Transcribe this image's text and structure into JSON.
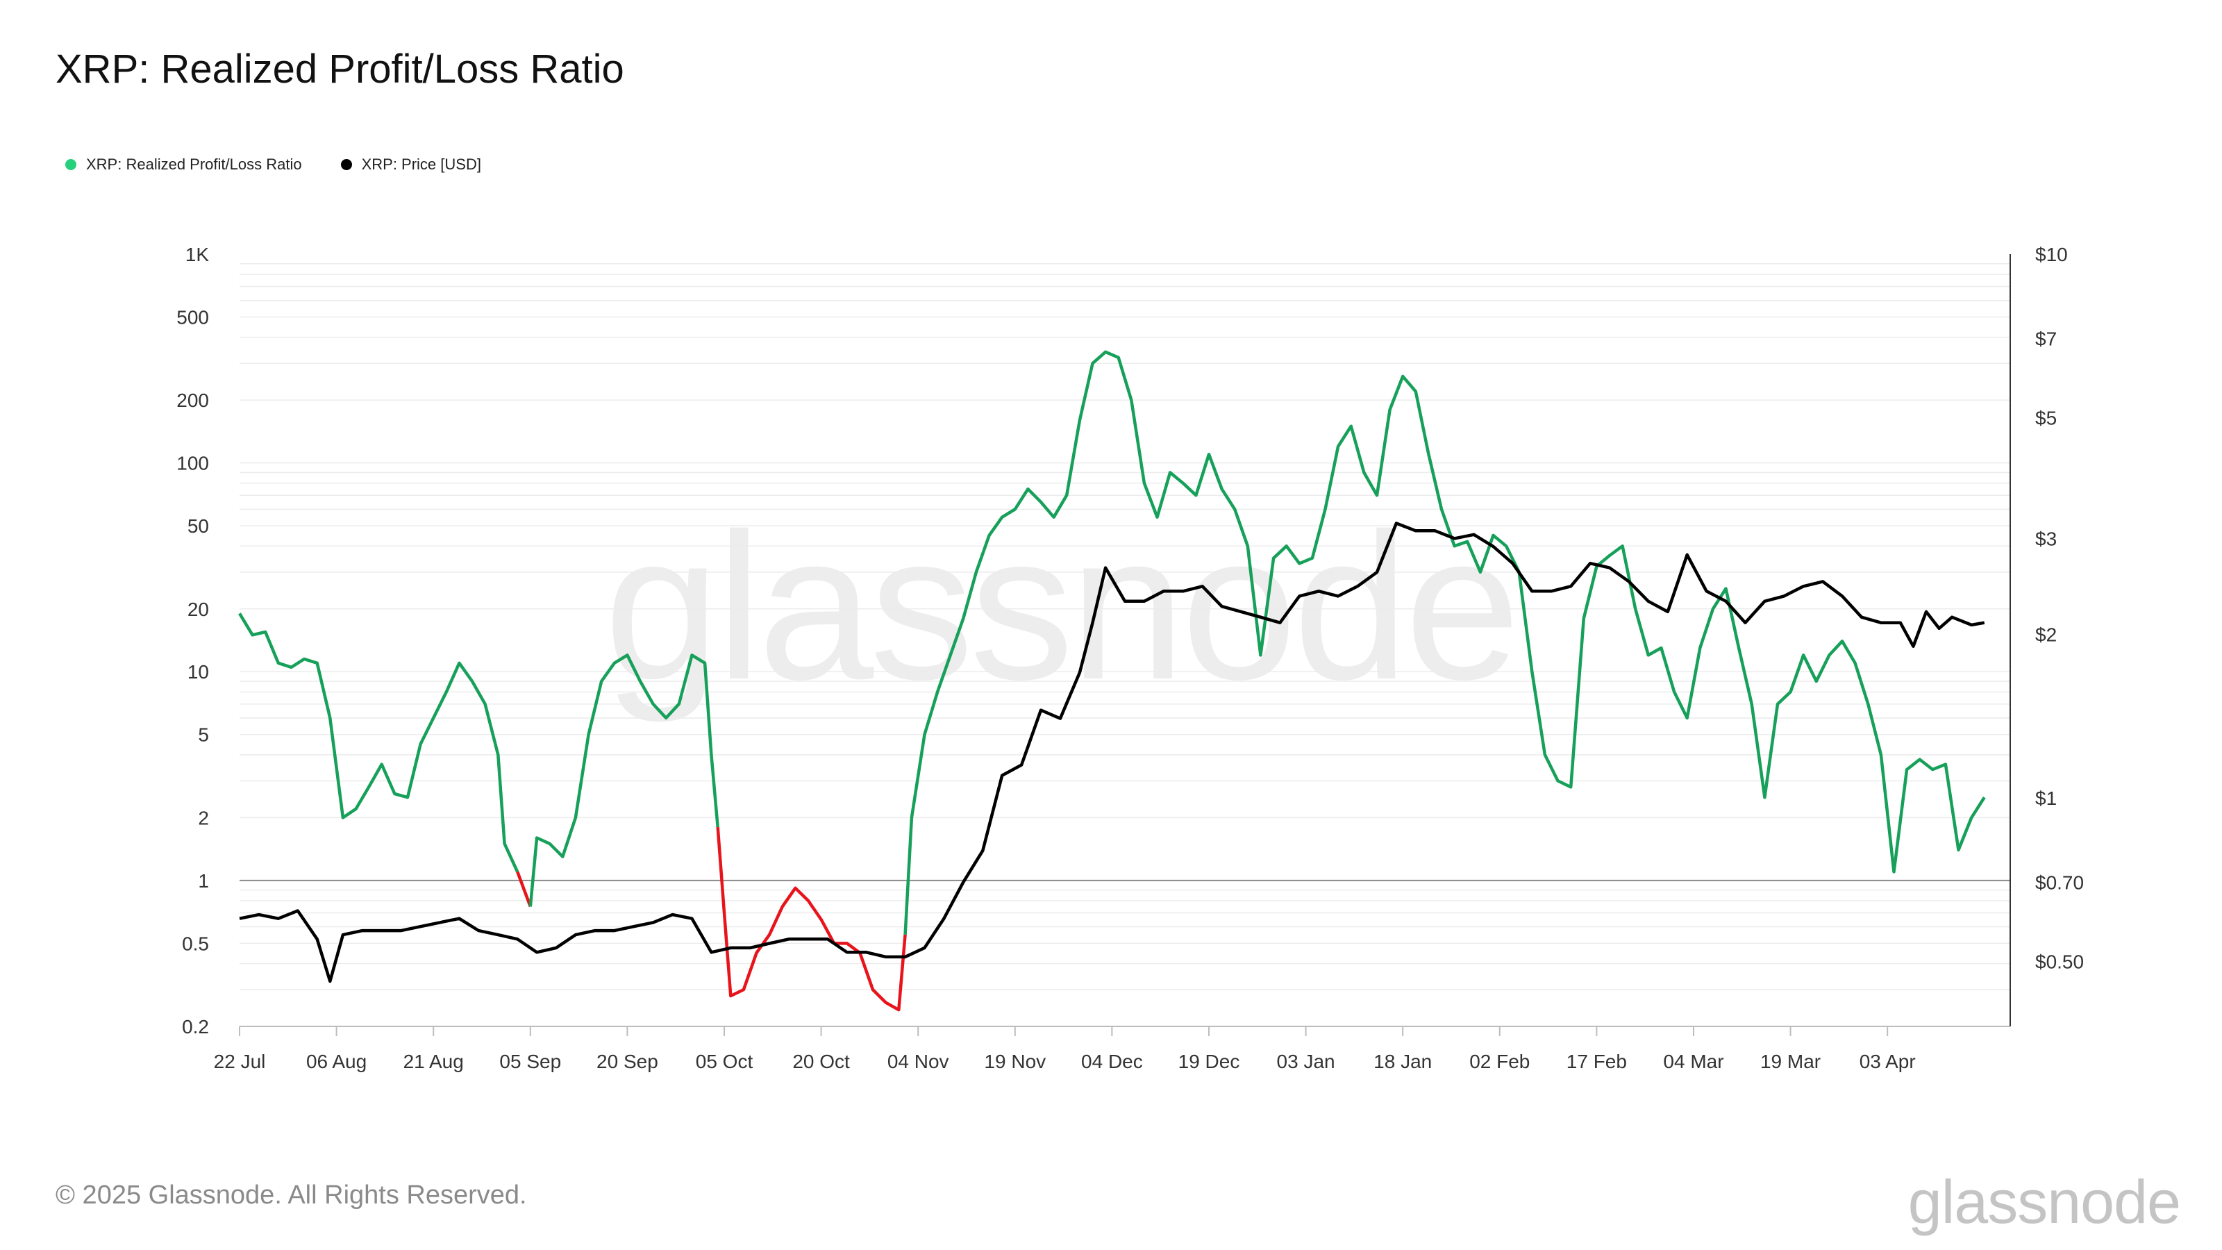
{
  "title": "XRP: Realized Profit/Loss Ratio",
  "footer": {
    "copyright": "© 2025 Glassnode. All Rights Reserved.",
    "brand": "glassnode"
  },
  "watermark": "glassnode",
  "colors": {
    "profit": "#16a05a",
    "loss": "#e8141b",
    "price": "#000000",
    "legend_ratio": "#26d07c"
  },
  "chart_data": {
    "type": "line",
    "title": "XRP: Realized Profit/Loss Ratio",
    "x_scale": "time",
    "x_ticks": [
      "22 Jul",
      "06 Aug",
      "21 Aug",
      "05 Sep",
      "20 Sep",
      "05 Oct",
      "20 Oct",
      "04 Nov",
      "19 Nov",
      "04 Dec",
      "19 Dec",
      "03 Jan",
      "18 Jan",
      "02 Feb",
      "17 Feb",
      "04 Mar",
      "19 Mar",
      "03 Apr"
    ],
    "y_left": {
      "scale": "log",
      "range": [
        0.2,
        1000
      ],
      "ticks": [
        1000,
        500,
        200,
        100,
        50,
        20,
        10,
        5,
        2,
        1,
        0.5,
        0.2
      ],
      "tick_labels": [
        "1K",
        "500",
        "200",
        "100",
        "50",
        "20",
        "10",
        "5",
        "2",
        "1",
        "0.5",
        "0.2"
      ],
      "reference_line": 1
    },
    "y_right": {
      "scale": "log",
      "range": [
        0.38,
        10
      ],
      "ticks": [
        10,
        7,
        5,
        3,
        2,
        1,
        0.7,
        0.5
      ],
      "tick_labels": [
        "$10",
        "$7",
        "$5",
        "$3",
        "$2",
        "$1",
        "$0.70",
        "$0.50"
      ]
    },
    "series": [
      {
        "name": "XRP: Realized Profit/Loss Ratio",
        "axis": "left",
        "color_above_1": "#16a05a",
        "color_below_1": "#e8141b",
        "points": [
          [
            "2024-07-22",
            19
          ],
          [
            "2024-07-24",
            15
          ],
          [
            "2024-07-26",
            15.5
          ],
          [
            "2024-07-28",
            11
          ],
          [
            "2024-07-30",
            10.5
          ],
          [
            "2024-08-01",
            11.5
          ],
          [
            "2024-08-03",
            11
          ],
          [
            "2024-08-05",
            6
          ],
          [
            "2024-08-07",
            2
          ],
          [
            "2024-08-09",
            2.2
          ],
          [
            "2024-08-11",
            2.8
          ],
          [
            "2024-08-13",
            3.6
          ],
          [
            "2024-08-15",
            2.6
          ],
          [
            "2024-08-17",
            2.5
          ],
          [
            "2024-08-19",
            4.5
          ],
          [
            "2024-08-21",
            6
          ],
          [
            "2024-08-23",
            8
          ],
          [
            "2024-08-25",
            11
          ],
          [
            "2024-08-27",
            9
          ],
          [
            "2024-08-29",
            7
          ],
          [
            "2024-08-31",
            4
          ],
          [
            "2024-09-01",
            1.5
          ],
          [
            "2024-09-03",
            1.1
          ],
          [
            "2024-09-05",
            0.75
          ],
          [
            "2024-09-06",
            1.6
          ],
          [
            "2024-09-08",
            1.5
          ],
          [
            "2024-09-10",
            1.3
          ],
          [
            "2024-09-12",
            2
          ],
          [
            "2024-09-14",
            5
          ],
          [
            "2024-09-16",
            9
          ],
          [
            "2024-09-18",
            11
          ],
          [
            "2024-09-20",
            12
          ],
          [
            "2024-09-22",
            9
          ],
          [
            "2024-09-24",
            7
          ],
          [
            "2024-09-26",
            6
          ],
          [
            "2024-09-28",
            7
          ],
          [
            "2024-09-30",
            12
          ],
          [
            "2024-10-02",
            11
          ],
          [
            "2024-10-03",
            4
          ],
          [
            "2024-10-04",
            1.8
          ],
          [
            "2024-10-05",
            0.7
          ],
          [
            "2024-10-06",
            0.28
          ],
          [
            "2024-10-08",
            0.3
          ],
          [
            "2024-10-10",
            0.45
          ],
          [
            "2024-10-12",
            0.55
          ],
          [
            "2024-10-14",
            0.75
          ],
          [
            "2024-10-16",
            0.92
          ],
          [
            "2024-10-18",
            0.8
          ],
          [
            "2024-10-20",
            0.65
          ],
          [
            "2024-10-22",
            0.5
          ],
          [
            "2024-10-24",
            0.5
          ],
          [
            "2024-10-26",
            0.45
          ],
          [
            "2024-10-28",
            0.3
          ],
          [
            "2024-10-30",
            0.26
          ],
          [
            "2024-11-01",
            0.24
          ],
          [
            "2024-11-02",
            0.55
          ],
          [
            "2024-11-03",
            2
          ],
          [
            "2024-11-05",
            5
          ],
          [
            "2024-11-07",
            8
          ],
          [
            "2024-11-09",
            12
          ],
          [
            "2024-11-11",
            18
          ],
          [
            "2024-11-13",
            30
          ],
          [
            "2024-11-15",
            45
          ],
          [
            "2024-11-17",
            55
          ],
          [
            "2024-11-19",
            60
          ],
          [
            "2024-11-21",
            75
          ],
          [
            "2024-11-23",
            65
          ],
          [
            "2024-11-25",
            55
          ],
          [
            "2024-11-27",
            70
          ],
          [
            "2024-11-29",
            160
          ],
          [
            "2024-12-01",
            300
          ],
          [
            "2024-12-03",
            340
          ],
          [
            "2024-12-05",
            320
          ],
          [
            "2024-12-07",
            200
          ],
          [
            "2024-12-09",
            80
          ],
          [
            "2024-12-11",
            55
          ],
          [
            "2024-12-13",
            90
          ],
          [
            "2024-12-15",
            80
          ],
          [
            "2024-12-17",
            70
          ],
          [
            "2024-12-19",
            110
          ],
          [
            "2024-12-21",
            75
          ],
          [
            "2024-12-23",
            60
          ],
          [
            "2024-12-25",
            40
          ],
          [
            "2024-12-27",
            12
          ],
          [
            "2024-12-29",
            35
          ],
          [
            "2024-12-31",
            40
          ],
          [
            "2025-01-02",
            33
          ],
          [
            "2025-01-04",
            35
          ],
          [
            "2025-01-06",
            60
          ],
          [
            "2025-01-08",
            120
          ],
          [
            "2025-01-10",
            150
          ],
          [
            "2025-01-12",
            90
          ],
          [
            "2025-01-14",
            70
          ],
          [
            "2025-01-16",
            180
          ],
          [
            "2025-01-18",
            260
          ],
          [
            "2025-01-20",
            220
          ],
          [
            "2025-01-22",
            110
          ],
          [
            "2025-01-24",
            60
          ],
          [
            "2025-01-26",
            40
          ],
          [
            "2025-01-28",
            42
          ],
          [
            "2025-01-30",
            30
          ],
          [
            "2025-02-01",
            45
          ],
          [
            "2025-02-03",
            40
          ],
          [
            "2025-02-05",
            30
          ],
          [
            "2025-02-07",
            10
          ],
          [
            "2025-02-09",
            4
          ],
          [
            "2025-02-11",
            3
          ],
          [
            "2025-02-13",
            2.8
          ],
          [
            "2025-02-15",
            18
          ],
          [
            "2025-02-17",
            32
          ],
          [
            "2025-02-19",
            36
          ],
          [
            "2025-02-21",
            40
          ],
          [
            "2025-02-23",
            20
          ],
          [
            "2025-02-25",
            12
          ],
          [
            "2025-02-27",
            13
          ],
          [
            "2025-03-01",
            8
          ],
          [
            "2025-03-03",
            6
          ],
          [
            "2025-03-05",
            13
          ],
          [
            "2025-03-07",
            20
          ],
          [
            "2025-03-09",
            25
          ],
          [
            "2025-03-11",
            13
          ],
          [
            "2025-03-13",
            7
          ],
          [
            "2025-03-15",
            2.5
          ],
          [
            "2025-03-17",
            7
          ],
          [
            "2025-03-19",
            8
          ],
          [
            "2025-03-21",
            12
          ],
          [
            "2025-03-23",
            9
          ],
          [
            "2025-03-25",
            12
          ],
          [
            "2025-03-27",
            14
          ],
          [
            "2025-03-29",
            11
          ],
          [
            "2025-03-31",
            7
          ],
          [
            "2025-04-02",
            4
          ],
          [
            "2025-04-04",
            1.1
          ],
          [
            "2025-04-06",
            3.4
          ],
          [
            "2025-04-08",
            3.8
          ],
          [
            "2025-04-10",
            3.4
          ],
          [
            "2025-04-12",
            3.6
          ],
          [
            "2025-04-14",
            1.4
          ],
          [
            "2025-04-16",
            2
          ],
          [
            "2025-04-18",
            2.5
          ]
        ]
      },
      {
        "name": "XRP: Price [USD]",
        "axis": "right",
        "color": "#000000",
        "points": [
          [
            "2024-07-22",
            0.6
          ],
          [
            "2024-07-25",
            0.61
          ],
          [
            "2024-07-28",
            0.6
          ],
          [
            "2024-07-31",
            0.62
          ],
          [
            "2024-08-03",
            0.55
          ],
          [
            "2024-08-05",
            0.46
          ],
          [
            "2024-08-07",
            0.56
          ],
          [
            "2024-08-10",
            0.57
          ],
          [
            "2024-08-13",
            0.57
          ],
          [
            "2024-08-16",
            0.57
          ],
          [
            "2024-08-19",
            0.58
          ],
          [
            "2024-08-22",
            0.59
          ],
          [
            "2024-08-25",
            0.6
          ],
          [
            "2024-08-28",
            0.57
          ],
          [
            "2024-08-31",
            0.56
          ],
          [
            "2024-09-03",
            0.55
          ],
          [
            "2024-09-06",
            0.52
          ],
          [
            "2024-09-09",
            0.53
          ],
          [
            "2024-09-12",
            0.56
          ],
          [
            "2024-09-15",
            0.57
          ],
          [
            "2024-09-18",
            0.57
          ],
          [
            "2024-09-21",
            0.58
          ],
          [
            "2024-09-24",
            0.59
          ],
          [
            "2024-09-27",
            0.61
          ],
          [
            "2024-09-30",
            0.6
          ],
          [
            "2024-10-03",
            0.52
          ],
          [
            "2024-10-06",
            0.53
          ],
          [
            "2024-10-09",
            0.53
          ],
          [
            "2024-10-12",
            0.54
          ],
          [
            "2024-10-15",
            0.55
          ],
          [
            "2024-10-18",
            0.55
          ],
          [
            "2024-10-21",
            0.55
          ],
          [
            "2024-10-24",
            0.52
          ],
          [
            "2024-10-27",
            0.52
          ],
          [
            "2024-10-30",
            0.51
          ],
          [
            "2024-11-02",
            0.51
          ],
          [
            "2024-11-05",
            0.53
          ],
          [
            "2024-11-08",
            0.6
          ],
          [
            "2024-11-11",
            0.7
          ],
          [
            "2024-11-14",
            0.8
          ],
          [
            "2024-11-17",
            1.1
          ],
          [
            "2024-11-20",
            1.15
          ],
          [
            "2024-11-23",
            1.45
          ],
          [
            "2024-11-26",
            1.4
          ],
          [
            "2024-11-29",
            1.7
          ],
          [
            "2024-12-01",
            2.1
          ],
          [
            "2024-12-03",
            2.65
          ],
          [
            "2024-12-06",
            2.3
          ],
          [
            "2024-12-09",
            2.3
          ],
          [
            "2024-12-12",
            2.4
          ],
          [
            "2024-12-15",
            2.4
          ],
          [
            "2024-12-18",
            2.45
          ],
          [
            "2024-12-21",
            2.25
          ],
          [
            "2024-12-24",
            2.2
          ],
          [
            "2024-12-27",
            2.15
          ],
          [
            "2024-12-30",
            2.1
          ],
          [
            "2025-01-02",
            2.35
          ],
          [
            "2025-01-05",
            2.4
          ],
          [
            "2025-01-08",
            2.35
          ],
          [
            "2025-01-11",
            2.45
          ],
          [
            "2025-01-14",
            2.6
          ],
          [
            "2025-01-17",
            3.2
          ],
          [
            "2025-01-20",
            3.1
          ],
          [
            "2025-01-23",
            3.1
          ],
          [
            "2025-01-26",
            3.0
          ],
          [
            "2025-01-29",
            3.05
          ],
          [
            "2025-02-01",
            2.9
          ],
          [
            "2025-02-04",
            2.7
          ],
          [
            "2025-02-07",
            2.4
          ],
          [
            "2025-02-10",
            2.4
          ],
          [
            "2025-02-13",
            2.45
          ],
          [
            "2025-02-16",
            2.7
          ],
          [
            "2025-02-19",
            2.65
          ],
          [
            "2025-02-22",
            2.5
          ],
          [
            "2025-02-25",
            2.3
          ],
          [
            "2025-02-28",
            2.2
          ],
          [
            "2025-03-03",
            2.8
          ],
          [
            "2025-03-06",
            2.4
          ],
          [
            "2025-03-09",
            2.3
          ],
          [
            "2025-03-12",
            2.1
          ],
          [
            "2025-03-15",
            2.3
          ],
          [
            "2025-03-18",
            2.35
          ],
          [
            "2025-03-21",
            2.45
          ],
          [
            "2025-03-24",
            2.5
          ],
          [
            "2025-03-27",
            2.35
          ],
          [
            "2025-03-30",
            2.15
          ],
          [
            "2025-04-02",
            2.1
          ],
          [
            "2025-04-05",
            2.1
          ],
          [
            "2025-04-07",
            1.9
          ],
          [
            "2025-04-09",
            2.2
          ],
          [
            "2025-04-11",
            2.05
          ],
          [
            "2025-04-13",
            2.15
          ],
          [
            "2025-04-16",
            2.08
          ],
          [
            "2025-04-18",
            2.1
          ]
        ]
      }
    ]
  }
}
